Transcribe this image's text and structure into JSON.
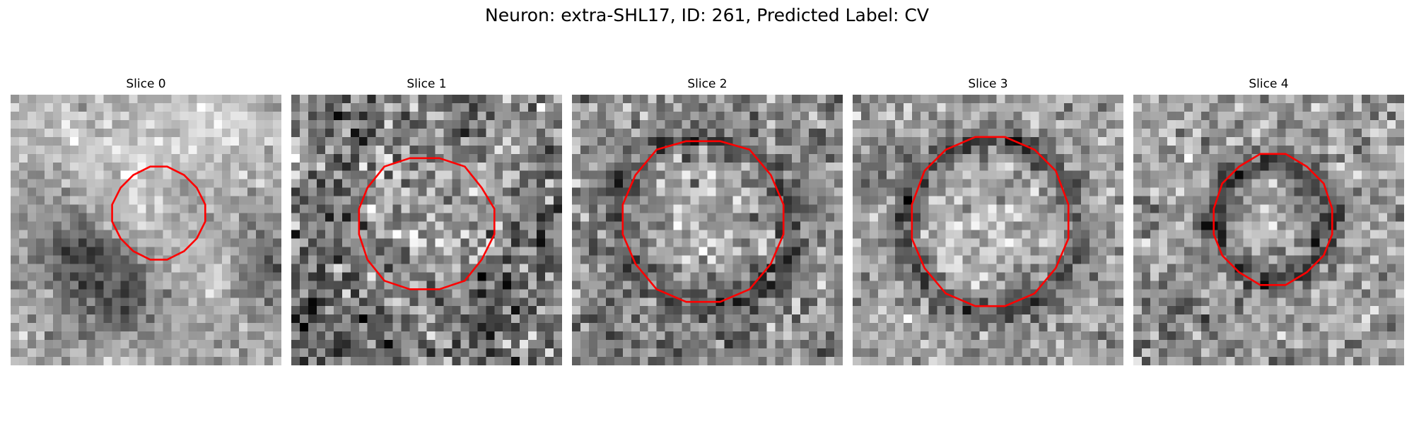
{
  "figure": {
    "title": "Neuron: extra-SHL17, ID: 261, Predicted Label: CV"
  },
  "colors": {
    "background": "#ffffff",
    "contour": "#ff0000",
    "colormap": "grayscale"
  },
  "panels": [
    {
      "title": "Slice 0",
      "content": "grayscale-microscopy-patch",
      "overlay": "red-outline"
    },
    {
      "title": "Slice 1",
      "content": "grayscale-microscopy-patch",
      "overlay": "red-outline"
    },
    {
      "title": "Slice 2",
      "content": "grayscale-microscopy-patch",
      "overlay": "red-outline"
    },
    {
      "title": "Slice 3",
      "content": "grayscale-microscopy-patch",
      "overlay": "red-outline"
    },
    {
      "title": "Slice 4",
      "content": "grayscale-microscopy-patch",
      "overlay": "red-outline"
    }
  ]
}
